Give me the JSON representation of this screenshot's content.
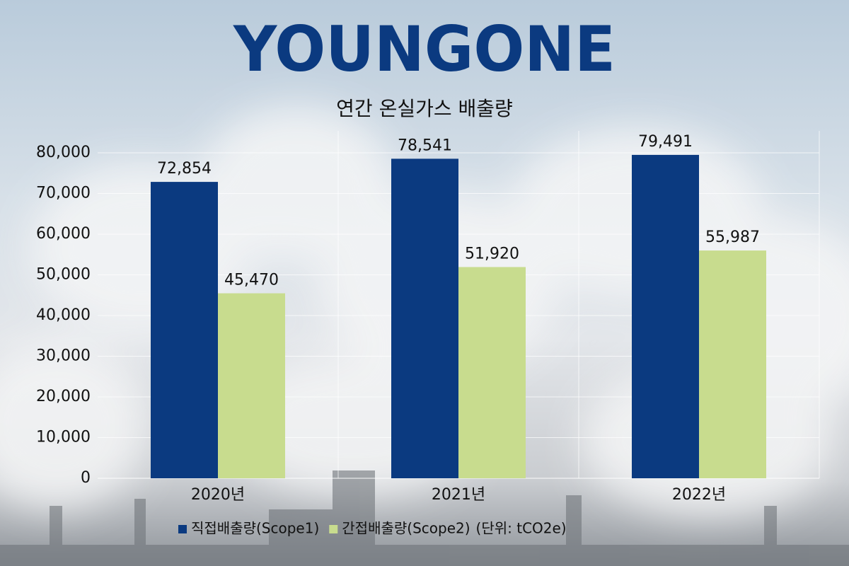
{
  "logo": "YOUNGONE",
  "chart_data": {
    "type": "bar",
    "title": "연간 온실가스 배출량",
    "categories": [
      "2020년",
      "2021년",
      "2022년"
    ],
    "series": [
      {
        "name": "직접배출량(Scope1)",
        "color": "#0b3a80",
        "values": [
          72854,
          78541,
          79491
        ],
        "value_labels": [
          "72,854",
          "78,541",
          "79,491"
        ]
      },
      {
        "name": "간접배출량(Scope2)",
        "color": "#c8dc8e",
        "values": [
          45470,
          51920,
          55987
        ],
        "value_labels": [
          "45,470",
          "51,920",
          "55,987"
        ]
      }
    ],
    "unit_note": "(단위: tCO2e)",
    "ylim": [
      0,
      80000
    ],
    "yticks": [
      0,
      {
        "value": 10000,
        "label": "10,000"
      },
      {
        "value": 20000,
        "label": "20,000"
      },
      {
        "value": 30000,
        "label": "30,000"
      },
      {
        "value": 40000,
        "label": "40,000"
      },
      {
        "value": 50000,
        "label": "50,000"
      },
      {
        "value": 60000,
        "label": "60,000"
      },
      {
        "value": 70000,
        "label": "70,000"
      },
      {
        "value": 80000,
        "label": "80,000"
      }
    ],
    "grid": true,
    "legend": "bottom"
  }
}
